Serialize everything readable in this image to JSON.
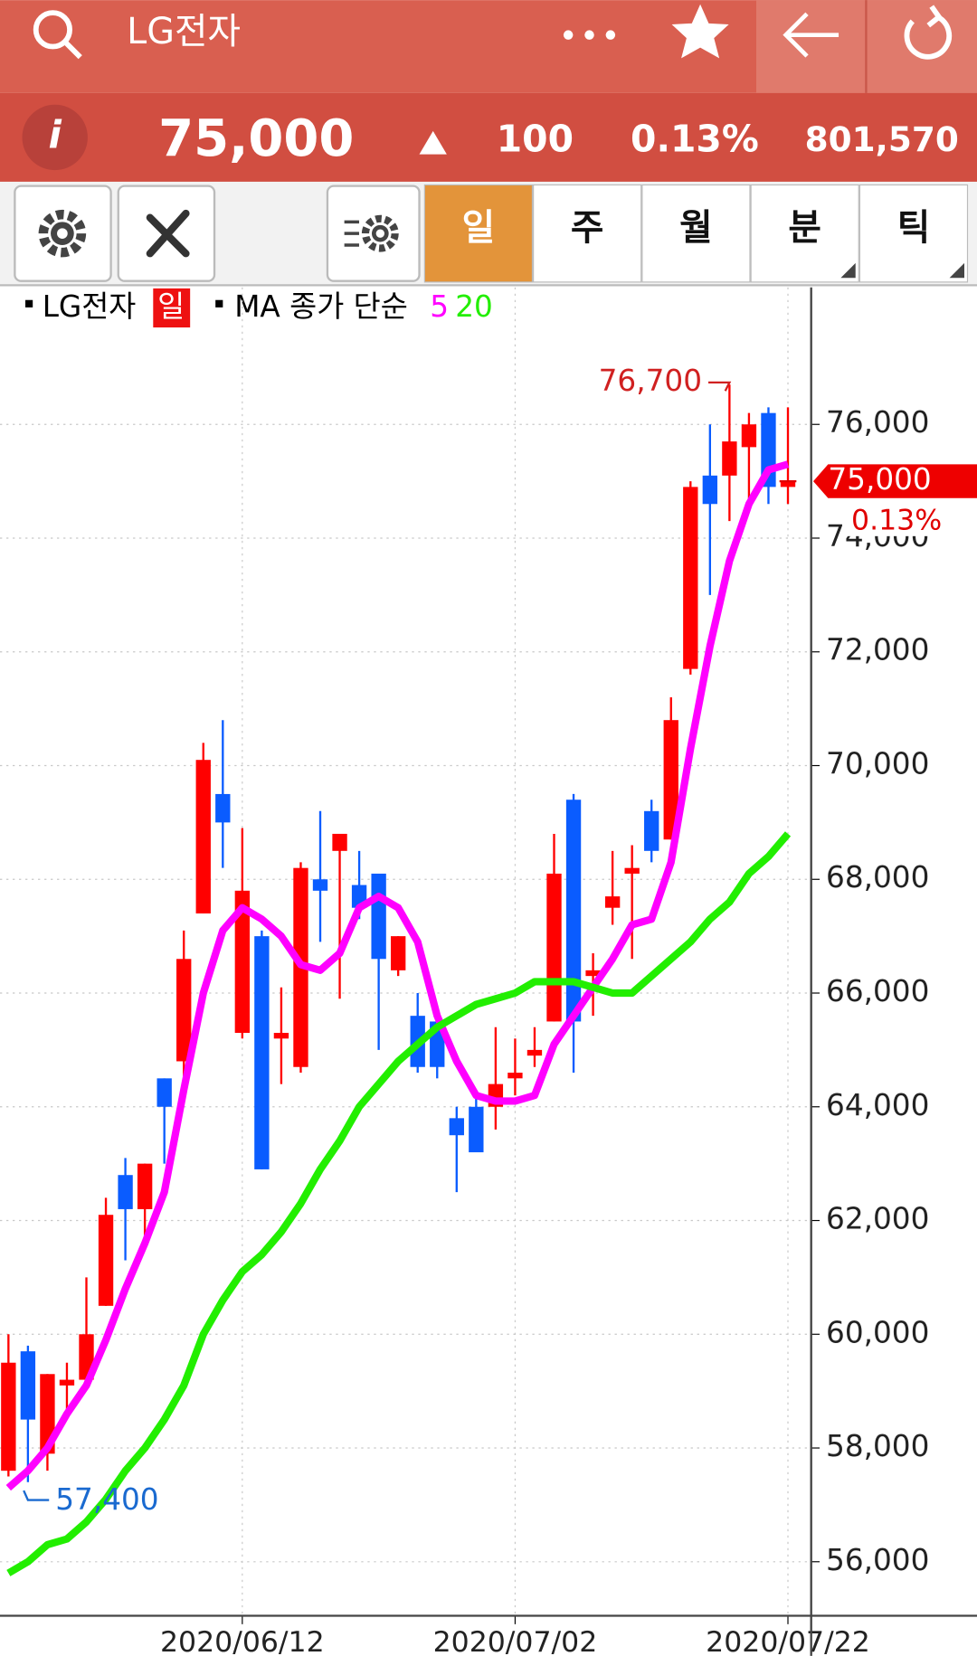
{
  "header": {
    "title": "LG전자"
  },
  "quote": {
    "price": "75,000",
    "change": "100",
    "change_pct": "0.13%",
    "volume": "801,570"
  },
  "tabs": [
    "일",
    "주",
    "월",
    "분",
    "틱"
  ],
  "legend": {
    "symbol": "LG전자",
    "period": "일",
    "ma_label": "MA 종가 단순"
  },
  "chart_data": {
    "type": "candlestick",
    "categories": [
      null,
      null,
      null,
      null,
      null,
      null,
      null,
      null,
      null,
      null,
      null,
      null,
      "2020/06/12",
      null,
      null,
      null,
      null,
      null,
      null,
      null,
      null,
      null,
      null,
      null,
      null,
      null,
      "2020/07/02",
      null,
      null,
      null,
      null,
      null,
      null,
      null,
      null,
      null,
      null,
      null,
      null,
      null,
      "2020/07/22"
    ],
    "open": [
      57600,
      59700,
      57900,
      59100,
      59200,
      60500,
      62800,
      62200,
      64500,
      64800,
      67400,
      69500,
      65300,
      67000,
      65200,
      64700,
      68000,
      68500,
      67900,
      68100,
      66400,
      65600,
      65500,
      63800,
      64000,
      64000,
      64500,
      64900,
      65500,
      69400,
      66300,
      67500,
      68100,
      69200,
      68700,
      71700,
      75100,
      75100,
      75600,
      76200,
      74900
    ],
    "high": [
      60000,
      59800,
      59300,
      59500,
      61000,
      62400,
      63100,
      63000,
      64500,
      67100,
      70400,
      70800,
      68900,
      67100,
      66100,
      68300,
      69200,
      68800,
      68500,
      68100,
      67000,
      66000,
      65500,
      64000,
      64300,
      65400,
      65200,
      65400,
      68800,
      69500,
      66700,
      68500,
      68600,
      69400,
      71200,
      75000,
      76000,
      76700,
      76200,
      76300,
      76300
    ],
    "low": [
      57500,
      57400,
      57600,
      58600,
      59100,
      60500,
      61300,
      61700,
      63000,
      64500,
      67400,
      68200,
      65200,
      62900,
      64400,
      64600,
      66900,
      65900,
      67300,
      65000,
      66300,
      64600,
      64500,
      62500,
      63200,
      63600,
      64200,
      64700,
      65500,
      64600,
      65600,
      67200,
      66600,
      68300,
      68700,
      71600,
      73000,
      74300,
      74600,
      74600,
      74600
    ],
    "close": [
      59500,
      58500,
      59300,
      59200,
      60000,
      62100,
      62200,
      63000,
      64000,
      66600,
      70100,
      69000,
      67800,
      62900,
      65300,
      68200,
      67800,
      68800,
      67500,
      66600,
      67000,
      64700,
      64700,
      63500,
      63200,
      64400,
      64600,
      65000,
      68100,
      65500,
      66400,
      67700,
      68200,
      68500,
      70800,
      74900,
      74600,
      75700,
      76000,
      74900,
      75000
    ],
    "up_color": "#ff0000",
    "down_color": "#0a5cff",
    "series": [
      {
        "name": "5",
        "color": "#ff00ff",
        "values": [
          57300,
          57600,
          58000,
          58600,
          59100,
          59900,
          60800,
          61600,
          62500,
          64300,
          66000,
          67100,
          67500,
          67300,
          67000,
          66500,
          66400,
          66700,
          67500,
          67700,
          67500,
          66900,
          65600,
          64800,
          64200,
          64100,
          64100,
          64200,
          65100,
          65600,
          66100,
          66600,
          67200,
          67300,
          68300,
          70300,
          72100,
          73600,
          74600,
          75200,
          75300
        ]
      },
      {
        "name": "20",
        "color": "#22ee00",
        "values": [
          55800,
          56000,
          56300,
          56400,
          56700,
          57100,
          57600,
          58000,
          58500,
          59100,
          60000,
          60600,
          61100,
          61400,
          61800,
          62300,
          62900,
          63400,
          64000,
          64400,
          64800,
          65100,
          65400,
          65600,
          65800,
          65900,
          66000,
          66200,
          66200,
          66200,
          66100,
          66000,
          66000,
          66300,
          66600,
          66900,
          67300,
          67600,
          68100,
          68400,
          68800
        ]
      }
    ],
    "ylim": [
      55050,
      78410
    ],
    "yticks": [
      {
        "value": 56000,
        "label": "56,000"
      },
      {
        "value": 58000,
        "label": "58,000"
      },
      {
        "value": 60000,
        "label": "60,000"
      },
      {
        "value": 62000,
        "label": "62,000"
      },
      {
        "value": 64000,
        "label": "64,000"
      },
      {
        "value": 66000,
        "label": "66,000"
      },
      {
        "value": 68000,
        "label": "68,000"
      },
      {
        "value": 70000,
        "label": "70,000"
      },
      {
        "value": 72000,
        "label": "72,000"
      },
      {
        "value": 74000,
        "label": "74,000"
      },
      {
        "value": 76000,
        "label": "76,000"
      }
    ],
    "grid": true,
    "high_label": {
      "index": 37,
      "value": 76700,
      "label": "76,700"
    },
    "low_label": {
      "index": 1,
      "value": 57400,
      "label": "57,400"
    },
    "last_price": {
      "value": 75000,
      "label": "75,000",
      "change_label": "0.13%"
    }
  }
}
